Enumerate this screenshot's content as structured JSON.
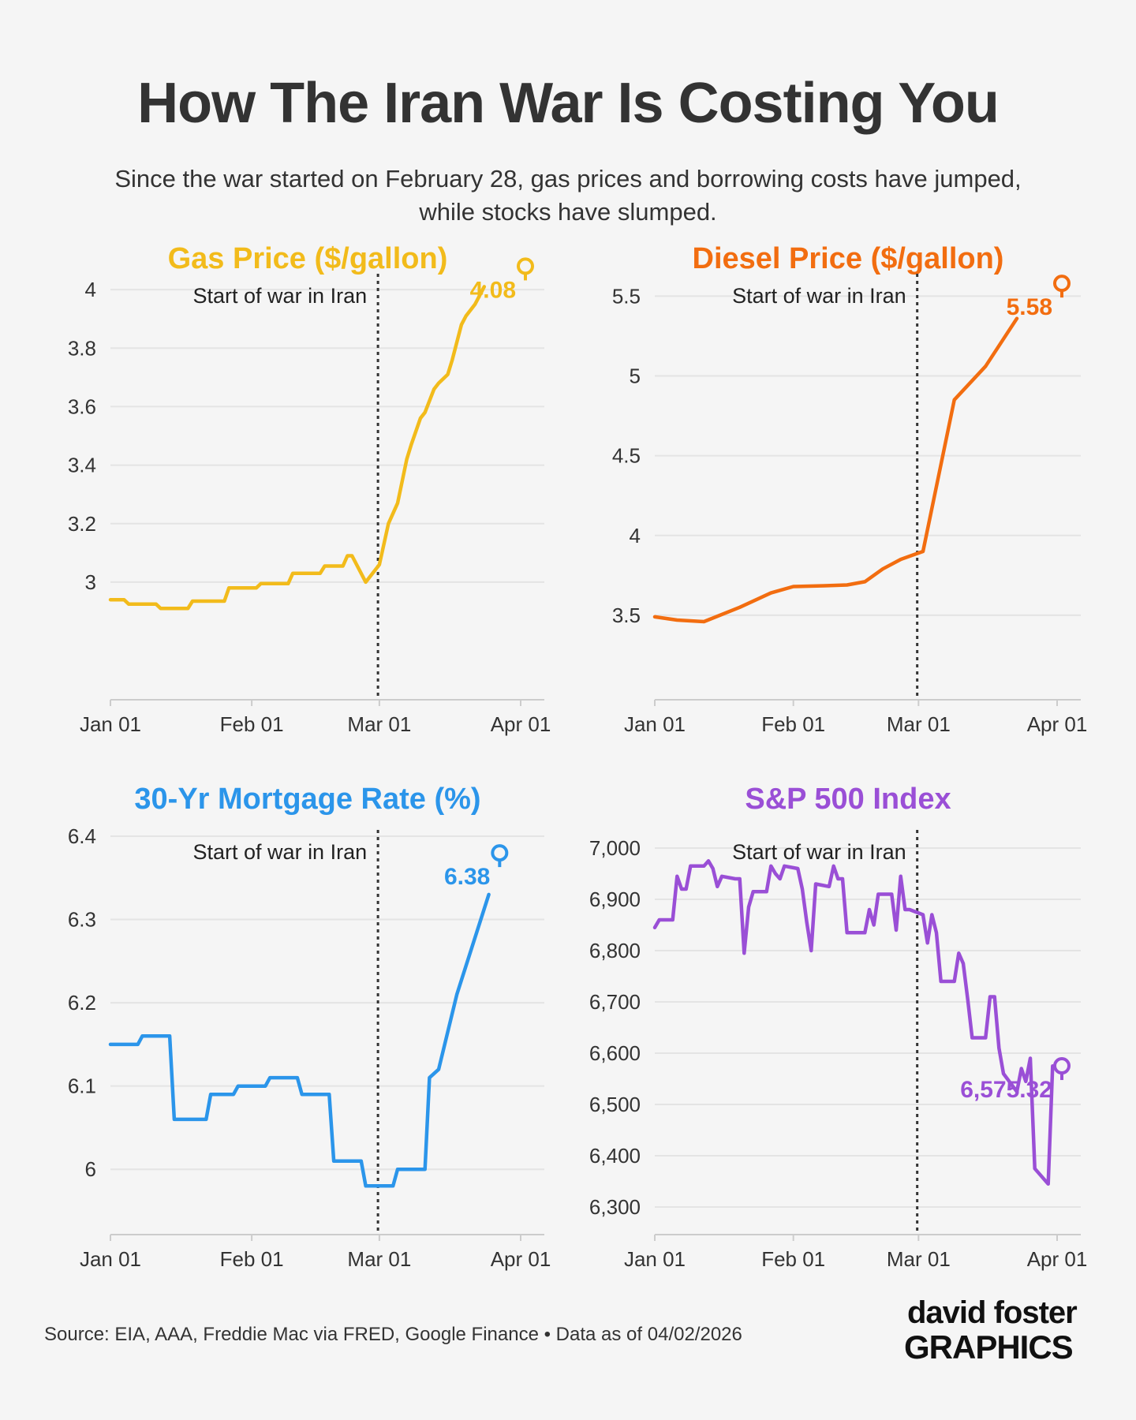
{
  "header": {
    "title": "How The Iran War Is Costing You",
    "subtitle_line1": "Since the war started on February 28, gas prices and borrowing costs have jumped,",
    "subtitle_line2": "while stocks have slumped."
  },
  "footer": {
    "source": "Source: EIA, AAA, Freddie Mac via FRED, Google Finance • Data as of 04/02/2026",
    "logo_line1": "david foster",
    "logo_line2": "GRAPHICS"
  },
  "colors": {
    "gas": "#f2bb1b",
    "diesel": "#f26d10",
    "mortgage": "#2b95ea",
    "sp500": "#9a4fd6",
    "grid": "#e4e4e4",
    "text": "#333333"
  },
  "chart_data": [
    {
      "id": "gas",
      "type": "line",
      "title": "Gas Price ($/gallon)",
      "color": "#f2bb1b",
      "xlim": [
        "2026-01-01",
        "2026-04-01"
      ],
      "ylim": [
        2.9,
        4.1
      ],
      "yticks": [
        3,
        3.2,
        3.4,
        3.6,
        3.8,
        4
      ],
      "ytick_labels": [
        "3",
        "3.2",
        "3.4",
        "3.6",
        "3.8",
        "4"
      ],
      "xtick_labels": [
        "Jan 01",
        "Feb 01",
        "Mar 01",
        "Apr 01"
      ],
      "event_date": "2026-02-28",
      "event_label": "Start of war in Iran",
      "last_value_label": "4.08",
      "last_point": [
        "2026-04-01",
        4.08
      ],
      "grid": true,
      "series": [
        {
          "step": true,
          "x": [
            "2026-01-01",
            "2026-01-04",
            "2026-01-05",
            "2026-01-11",
            "2026-01-12",
            "2026-01-18",
            "2026-01-19",
            "2026-01-26",
            "2026-01-27",
            "2026-02-02",
            "2026-02-03",
            "2026-02-09",
            "2026-02-10",
            "2026-02-16",
            "2026-02-17",
            "2026-02-21",
            "2026-02-22",
            "2026-02-23",
            "2026-02-26",
            "2026-03-01",
            "2026-03-03",
            "2026-03-05",
            "2026-03-07",
            "2026-03-08",
            "2026-03-10",
            "2026-03-11",
            "2026-03-13",
            "2026-03-14",
            "2026-03-16",
            "2026-03-17",
            "2026-03-19",
            "2026-03-20",
            "2026-03-22",
            "2026-03-24"
          ],
          "y": [
            2.94,
            2.94,
            2.925,
            2.925,
            2.91,
            2.91,
            2.935,
            2.935,
            2.98,
            2.98,
            2.995,
            2.995,
            3.03,
            3.03,
            3.055,
            3.055,
            3.09,
            3.09,
            3.0,
            3.06,
            3.2,
            3.27,
            3.42,
            3.47,
            3.56,
            3.58,
            3.66,
            3.68,
            3.71,
            3.76,
            3.88,
            3.91,
            3.95,
            4.01
          ]
        }
      ]
    },
    {
      "id": "diesel",
      "type": "line",
      "title": "Diesel Price ($/gallon)",
      "color": "#f26d10",
      "xlim": [
        "2026-01-01",
        "2026-04-01"
      ],
      "ylim": [
        3.45,
        5.65
      ],
      "yticks": [
        3.5,
        4,
        4.5,
        5,
        5.5
      ],
      "ytick_labels": [
        "3.5",
        "4",
        "4.5",
        "5",
        "5.5"
      ],
      "xtick_labels": [
        "Jan 01",
        "Feb 01",
        "Mar 01",
        "Apr 01"
      ],
      "event_date": "2026-02-28",
      "event_label": "Start of war in Iran",
      "last_value_label": "5.58",
      "last_point": [
        "2026-04-01",
        5.58
      ],
      "grid": true,
      "series": [
        {
          "step": false,
          "x": [
            "2026-01-01",
            "2026-01-06",
            "2026-01-12",
            "2026-01-20",
            "2026-01-27",
            "2026-02-01",
            "2026-02-08",
            "2026-02-13",
            "2026-02-17",
            "2026-02-21",
            "2026-02-25",
            "2026-02-28",
            "2026-03-02",
            "2026-03-09",
            "2026-03-16",
            "2026-03-23"
          ],
          "y": [
            3.49,
            3.47,
            3.46,
            3.55,
            3.64,
            3.68,
            3.685,
            3.69,
            3.71,
            3.79,
            3.85,
            3.88,
            3.9,
            4.85,
            5.06,
            5.36
          ]
        }
      ]
    },
    {
      "id": "mortgage",
      "type": "line",
      "title": "30-Yr Mortgage Rate (%)",
      "color": "#2b95ea",
      "xlim": [
        "2026-01-01",
        "2026-04-01"
      ],
      "ylim": [
        5.95,
        6.4
      ],
      "yticks": [
        6,
        6.1,
        6.2,
        6.3,
        6.4
      ],
      "ytick_labels": [
        "6",
        "6.1",
        "6.2",
        "6.3",
        "6.4"
      ],
      "xtick_labels": [
        "Jan 01",
        "Feb 01",
        "Mar 01",
        "Apr 01"
      ],
      "event_date": "2026-02-28",
      "event_label": "Start of war in Iran",
      "last_value_label": "6.38",
      "last_point": [
        "2026-03-26",
        6.38
      ],
      "grid": true,
      "series": [
        {
          "step": true,
          "x": [
            "2026-01-01",
            "2026-01-07",
            "2026-01-08",
            "2026-01-14",
            "2026-01-15",
            "2026-01-22",
            "2026-01-23",
            "2026-01-28",
            "2026-01-29",
            "2026-02-04",
            "2026-02-05",
            "2026-02-11",
            "2026-02-12",
            "2026-02-18",
            "2026-02-19",
            "2026-02-25",
            "2026-02-26",
            "2026-03-04",
            "2026-03-05",
            "2026-03-11",
            "2026-03-12",
            "2026-03-14",
            "2026-03-18",
            "2026-03-25"
          ],
          "y": [
            6.15,
            6.15,
            6.16,
            6.16,
            6.06,
            6.06,
            6.09,
            6.09,
            6.1,
            6.1,
            6.11,
            6.11,
            6.09,
            6.09,
            6.01,
            6.01,
            5.98,
            5.98,
            6.0,
            6.0,
            6.11,
            6.12,
            6.21,
            6.33
          ]
        }
      ]
    },
    {
      "id": "sp500",
      "type": "line",
      "title": "S&P 500 Index",
      "color": "#9a4fd6",
      "xlim": [
        "2026-01-01",
        "2026-04-01"
      ],
      "ylim": [
        6300,
        7000
      ],
      "yticks": [
        6300,
        6400,
        6500,
        6600,
        6700,
        6800,
        6900,
        7000
      ],
      "ytick_labels": [
        "6,300",
        "6,400",
        "6,500",
        "6,600",
        "6,700",
        "6,800",
        "6,900",
        "7,000"
      ],
      "xtick_labels": [
        "Jan 01",
        "Feb 01",
        "Mar 01",
        "Apr 01"
      ],
      "event_date": "2026-02-28",
      "event_label": "Start of war in Iran",
      "last_value_label": "6,575.32",
      "last_point": [
        "2026-04-01",
        6575.32
      ],
      "grid": true,
      "series": [
        {
          "step": false,
          "x": [
            "2026-01-01",
            "2026-01-02",
            "2026-01-05",
            "2026-01-06",
            "2026-01-07",
            "2026-01-08",
            "2026-01-09",
            "2026-01-12",
            "2026-01-13",
            "2026-01-14",
            "2026-01-15",
            "2026-01-16",
            "2026-01-19",
            "2026-01-20",
            "2026-01-21",
            "2026-01-22",
            "2026-01-23",
            "2026-01-26",
            "2026-01-27",
            "2026-01-28",
            "2026-01-29",
            "2026-01-30",
            "2026-02-02",
            "2026-02-03",
            "2026-02-04",
            "2026-02-05",
            "2026-02-06",
            "2026-02-09",
            "2026-02-10",
            "2026-02-11",
            "2026-02-12",
            "2026-02-13",
            "2026-02-16",
            "2026-02-17",
            "2026-02-18",
            "2026-02-19",
            "2026-02-20",
            "2026-02-23",
            "2026-02-24",
            "2026-02-25",
            "2026-02-26",
            "2026-02-27",
            "2026-03-02",
            "2026-03-03",
            "2026-03-04",
            "2026-03-05",
            "2026-03-06",
            "2026-03-09",
            "2026-03-10",
            "2026-03-11",
            "2026-03-12",
            "2026-03-13",
            "2026-03-16",
            "2026-03-17",
            "2026-03-18",
            "2026-03-19",
            "2026-03-20",
            "2026-03-23",
            "2026-03-24",
            "2026-03-25",
            "2026-03-26",
            "2026-03-27",
            "2026-03-30",
            "2026-03-31"
          ],
          "y": [
            6845,
            6860,
            6860,
            6945,
            6920,
            6920,
            6965,
            6965,
            6975,
            6960,
            6925,
            6945,
            6940,
            6940,
            6795,
            6885,
            6915,
            6915,
            6965,
            6950,
            6940,
            6965,
            6960,
            6920,
            6855,
            6800,
            6930,
            6925,
            6965,
            6940,
            6940,
            6835,
            6835,
            6835,
            6880,
            6850,
            6910,
            6910,
            6840,
            6945,
            6880,
            6880,
            6870,
            6815,
            6870,
            6835,
            6740,
            6740,
            6795,
            6775,
            6705,
            6630,
            6630,
            6710,
            6710,
            6610,
            6560,
            6525,
            6570,
            6545,
            6590,
            6375,
            6345,
            6575
          ]
        }
      ]
    }
  ]
}
